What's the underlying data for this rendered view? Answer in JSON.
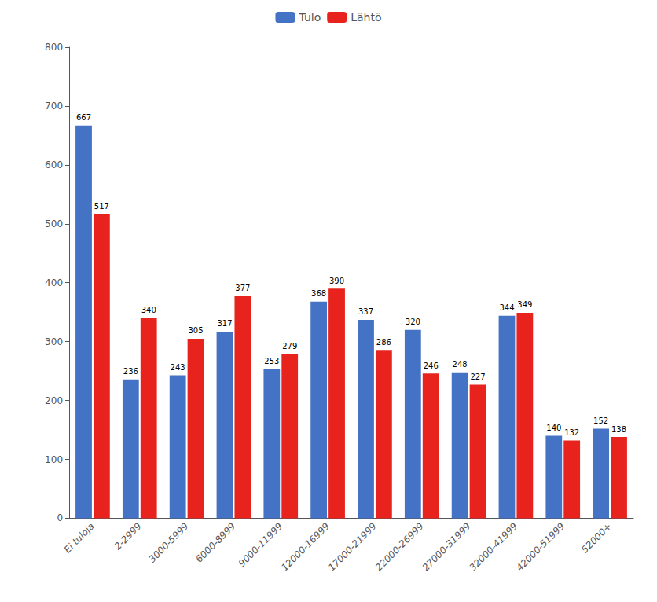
{
  "chart_data": {
    "type": "bar",
    "categories": [
      "Ei tuloja",
      "2-2999",
      "3000-5999",
      "6000-8999",
      "9000-11999",
      "12000-16999",
      "17000-21999",
      "22000-26999",
      "27000-31999",
      "32000-41999",
      "42000-51999",
      "52000+"
    ],
    "series": [
      {
        "name": "Tulo",
        "color": "#4472C4",
        "values": [
          667,
          236,
          243,
          317,
          253,
          368,
          337,
          320,
          248,
          344,
          140,
          152
        ]
      },
      {
        "name": "Lähtö",
        "color": "#E8231E",
        "values": [
          517,
          340,
          305,
          377,
          279,
          390,
          286,
          246,
          227,
          349,
          132,
          138
        ]
      }
    ],
    "ylim": [
      0,
      800
    ],
    "yticks": [
      0,
      100,
      200,
      300,
      400,
      500,
      600,
      700,
      800
    ],
    "grid": false,
    "legend": "top",
    "data_labels": true
  }
}
